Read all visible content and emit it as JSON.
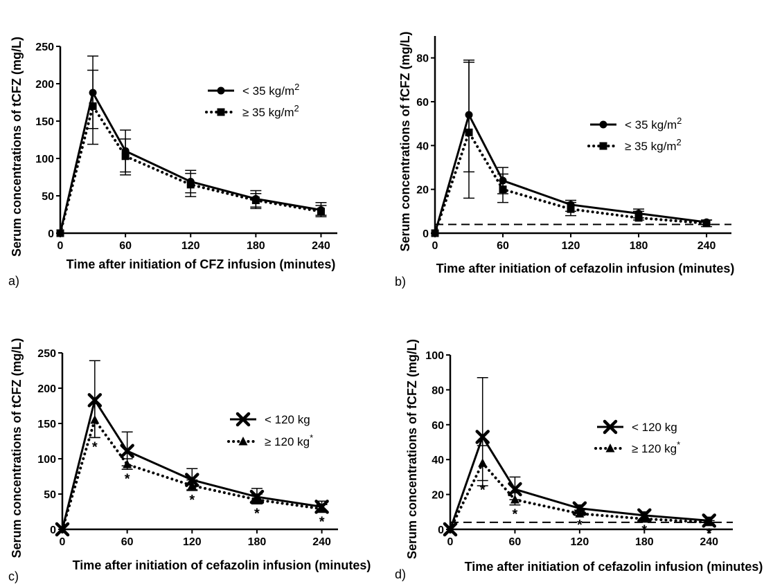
{
  "chart_data": [
    {
      "panel": "a)",
      "type": "line",
      "xlabel": "Time after initiation of CFZ infusion (minutes)",
      "ylabel": "Serum concentrations of tCFZ (mg/L)",
      "xlim": [
        0,
        255
      ],
      "ylim": [
        0,
        250
      ],
      "xticks": [
        0,
        60,
        120,
        180,
        240
      ],
      "yticks": [
        0,
        50,
        100,
        150,
        200,
        250
      ],
      "x": [
        0,
        30,
        60,
        120,
        180,
        240
      ],
      "legend_position": "top-right",
      "series": [
        {
          "name": "< 35 kg/m",
          "sup": "2",
          "marker": "circle",
          "line": "solid",
          "values": [
            0,
            188,
            110,
            69,
            46,
            31
          ],
          "err_hi": [
            0,
            237,
            138,
            84,
            57,
            41
          ],
          "err_lo": [
            0,
            140,
            82,
            54,
            35,
            24
          ]
        },
        {
          "name": "≥ 35 kg/m",
          "sup": "2",
          "marker": "square",
          "line": "dotted",
          "values": [
            0,
            170,
            103,
            65,
            44,
            29
          ],
          "err_hi": [
            0,
            218,
            126,
            80,
            53,
            37
          ],
          "err_lo": [
            0,
            119,
            78,
            49,
            33,
            22
          ]
        }
      ],
      "stars": [],
      "hline": null
    },
    {
      "panel": "b)",
      "type": "line",
      "xlabel": "Time after initiation of cefazolin infusion (minutes)",
      "ylabel": "Serum concentrations of fCFZ (mg/L)",
      "xlim": [
        0,
        262
      ],
      "ylim": [
        0,
        90
      ],
      "xticks": [
        0,
        60,
        120,
        180,
        240
      ],
      "yticks": [
        0,
        20,
        40,
        60,
        80
      ],
      "x": [
        0,
        30,
        60,
        120,
        180,
        240
      ],
      "legend_position": "middle-right",
      "series": [
        {
          "name": "< 35 kg/m",
          "sup": "2",
          "marker": "circle",
          "line": "solid",
          "values": [
            0,
            54,
            24,
            13,
            9,
            5
          ],
          "err_hi": [
            0,
            79,
            30,
            15,
            11,
            6
          ],
          "err_lo": [
            0,
            28,
            18,
            10,
            7,
            4
          ]
        },
        {
          "name": "≥ 35 kg/m",
          "sup": "2",
          "marker": "square",
          "line": "dotted",
          "values": [
            0,
            46,
            20,
            11,
            7,
            4.5
          ],
          "err_hi": [
            0,
            78,
            27,
            14,
            10,
            6
          ],
          "err_lo": [
            0,
            16,
            14,
            8,
            6,
            3
          ]
        }
      ],
      "stars": [],
      "hline": 4
    },
    {
      "panel": "c)",
      "type": "line",
      "xlabel": "Time after initiation of cefazolin infusion (minutes)",
      "ylabel": "Serum concentrations of tCFZ (mg/L)",
      "xlim": [
        0,
        255
      ],
      "ylim": [
        0,
        250
      ],
      "xticks": [
        0,
        60,
        120,
        180,
        240
      ],
      "yticks": [
        0,
        50,
        100,
        150,
        200,
        250
      ],
      "x": [
        0,
        30,
        60,
        120,
        180,
        240
      ],
      "legend_position": "middle-right",
      "series": [
        {
          "name": "< 120 kg",
          "sup": "",
          "marker": "cross",
          "line": "solid",
          "values": [
            0,
            183,
            111,
            70,
            46,
            32
          ],
          "err_hi": [
            0,
            239,
            138,
            86,
            58,
            40
          ],
          "err_lo": [
            0,
            130,
            90,
            56,
            38,
            26
          ]
        },
        {
          "name": "≥ 120 kg",
          "sup": "*",
          "marker": "triangle",
          "line": "dotted",
          "values": [
            0,
            155,
            92,
            62,
            42,
            29
          ],
          "err_hi": [
            0,
            178,
            100,
            70,
            50,
            35
          ],
          "err_lo": [
            0,
            130,
            85,
            55,
            36,
            24
          ]
        }
      ],
      "stars": [
        30,
        60,
        120,
        180,
        240
      ],
      "hline": null
    },
    {
      "panel": "d)",
      "type": "line",
      "xlabel": "Time after initiation of cefazolin infusion (minutes)",
      "ylabel": "Serum concentrations of fCFZ (mg/L)",
      "xlim": [
        0,
        262
      ],
      "ylim": [
        0,
        100
      ],
      "xticks": [
        0,
        60,
        120,
        180,
        240
      ],
      "yticks": [
        0,
        20,
        40,
        60,
        80,
        100
      ],
      "x": [
        0,
        30,
        60,
        120,
        180,
        240
      ],
      "legend_position": "middle-right",
      "series": [
        {
          "name": "< 120 kg",
          "sup": "",
          "marker": "cross",
          "line": "solid",
          "values": [
            0,
            53,
            23,
            12,
            8,
            5
          ],
          "err_hi": [
            0,
            87,
            30,
            14,
            10,
            7
          ],
          "err_lo": [
            0,
            25,
            17,
            10,
            6,
            4
          ]
        },
        {
          "name": "≥ 120 kg",
          "sup": "*",
          "marker": "triangle",
          "line": "dotted",
          "values": [
            0,
            38,
            17,
            9,
            6,
            4
          ],
          "err_hi": [
            0,
            48,
            21,
            11,
            8,
            5
          ],
          "err_lo": [
            0,
            28,
            14,
            8,
            5,
            3
          ]
        }
      ],
      "stars": [
        30,
        60,
        120,
        180,
        240
      ],
      "hline": 4
    }
  ]
}
